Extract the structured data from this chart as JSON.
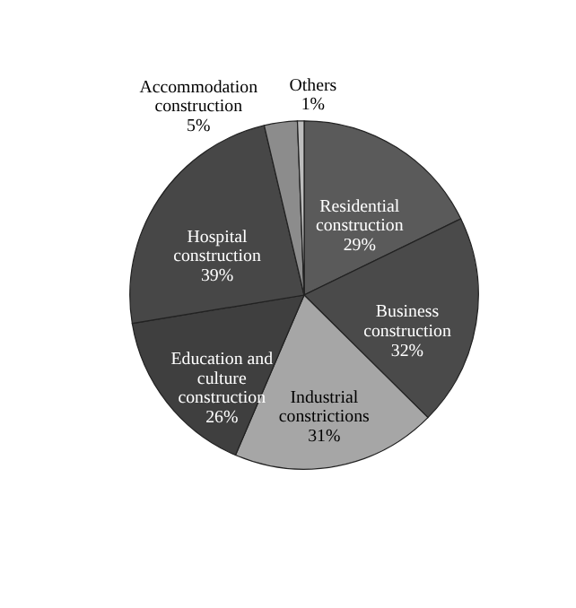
{
  "chart_data": {
    "type": "pie",
    "categories": [
      "Residential construction",
      "Business construction",
      "Industrial constrictions",
      "Education and culture construction",
      "Hospital construction",
      "Accommodation construction",
      "Others"
    ],
    "values": [
      29,
      32,
      31,
      26,
      39,
      5,
      1
    ],
    "value_labels": [
      "29%",
      "32%",
      "31%",
      "26%",
      "39%",
      "5%",
      "1%"
    ],
    "colors": [
      "#5a5a5a",
      "#4a4a4a",
      "#a6a6a6",
      "#3f3f3f",
      "#474747",
      "#8c8c8c",
      "#bdbdbd"
    ]
  }
}
